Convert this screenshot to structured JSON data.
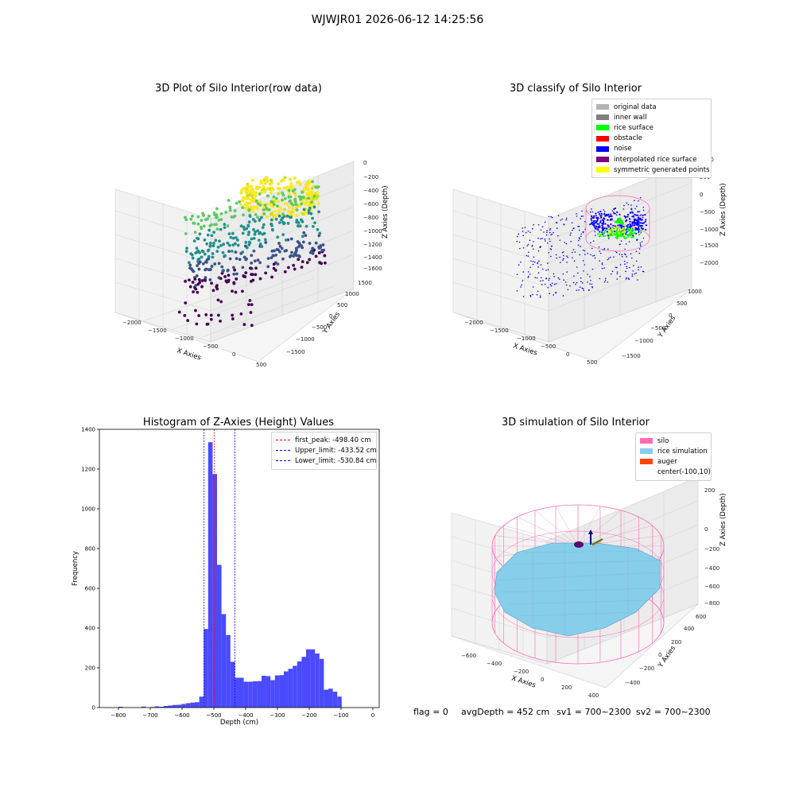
{
  "figure": {
    "suptitle": "WJWJR01 2026-06-12 14:25:56",
    "footer": {
      "flag": "flag = 0",
      "avg_depth": "avgDepth = 452 cm",
      "sv1": "sv1 = 700~2300",
      "sv2": "sv2 = 700~2300"
    }
  },
  "panel1": {
    "title": "3D Plot of Silo Interior(row data)",
    "xlabel": "X Axies",
    "ylabel": "Y Axies",
    "zlabel": "Z Axies (Depth)",
    "xticks": [
      "−2000",
      "−1500",
      "−1000",
      "−500",
      "0",
      "500"
    ],
    "yticks": [
      "1500",
      "1000",
      "500",
      "0",
      "−500",
      "−1000",
      "−1500"
    ],
    "zticks": [
      "0",
      "−200",
      "−400",
      "−600",
      "−800",
      "−1000",
      "−1200",
      "−1400",
      "−1600"
    ],
    "colormap": [
      "#440154",
      "#3b528b",
      "#21918c",
      "#5ec962",
      "#fde725"
    ]
  },
  "panel2": {
    "title": "3D classify of Silo Interior",
    "xlabel": "X Axies",
    "ylabel": "Y Axies",
    "zlabel": "Z Axies (Depth)",
    "xticks": [
      "−2000",
      "−1500",
      "−1000",
      "−500",
      "0",
      "500"
    ],
    "yticks": [
      "1000",
      "500",
      "0",
      "−500",
      "−1000",
      "−1500"
    ],
    "zticks": [
      "1000",
      "500",
      "0",
      "−500",
      "−1000",
      "−1500",
      "−2000"
    ],
    "legend": [
      {
        "label": "original data",
        "color": "#b3b3b3"
      },
      {
        "label": "inner wall",
        "color": "#808080"
      },
      {
        "label": "rice surface",
        "color": "#00ff00"
      },
      {
        "label": "obstacle",
        "color": "#ff0000"
      },
      {
        "label": "noise",
        "color": "#0000ff"
      },
      {
        "label": "interpolated rice surface",
        "color": "#800080"
      },
      {
        "label": "symmetric generated points",
        "color": "#ffff00"
      }
    ]
  },
  "panel3": {
    "title": "3D simulation of Silo Interior",
    "xlabel": "X Axies",
    "ylabel": "Y Axies",
    "zlabel": "Z Axies (Depth)",
    "xticks": [
      "−600",
      "−400",
      "−200",
      "0",
      "200",
      "400"
    ],
    "yticks": [
      "600",
      "400",
      "200",
      "0",
      "−200",
      "−400"
    ],
    "zticks": [
      "200",
      "0",
      "−200",
      "−400",
      "−600",
      "−800"
    ],
    "legend": [
      {
        "label": "silo",
        "color": "#ff69b4"
      },
      {
        "label": "rice simulation",
        "color": "#87ceeb"
      },
      {
        "label": "auger",
        "color": "#ff4500"
      },
      {
        "label": "center(-100,10)",
        "color": "#ffffff"
      }
    ]
  },
  "chart_data": {
    "type": "bar",
    "title": "Histogram of Z-Axies (Height) Values",
    "xlabel": "Depth (cm)",
    "ylabel": "Frequency",
    "xlim": [
      -860,
      20
    ],
    "ylim": [
      0,
      1400
    ],
    "xticks": [
      -800,
      -700,
      -600,
      -500,
      -400,
      -300,
      -200,
      -100,
      0
    ],
    "yticks": [
      0,
      200,
      400,
      600,
      800,
      1000,
      1200,
      1400
    ],
    "bar_color": "#4a4aff",
    "bins": [
      {
        "x0": -800,
        "x1": -786,
        "value": 4
      },
      {
        "x0": -728,
        "x1": -714,
        "value": 5
      },
      {
        "x0": -700,
        "x1": -686,
        "value": 3
      },
      {
        "x0": -686,
        "x1": -672,
        "value": 6
      },
      {
        "x0": -672,
        "x1": -658,
        "value": 4
      },
      {
        "x0": -658,
        "x1": -644,
        "value": 8
      },
      {
        "x0": -644,
        "x1": -630,
        "value": 10
      },
      {
        "x0": -630,
        "x1": -616,
        "value": 13
      },
      {
        "x0": -616,
        "x1": -602,
        "value": 14
      },
      {
        "x0": -602,
        "x1": -588,
        "value": 18
      },
      {
        "x0": -588,
        "x1": -574,
        "value": 22
      },
      {
        "x0": -574,
        "x1": -560,
        "value": 25
      },
      {
        "x0": -560,
        "x1": -546,
        "value": 27
      },
      {
        "x0": -546,
        "x1": -532,
        "value": 55
      },
      {
        "x0": -532,
        "x1": -518,
        "value": 395
      },
      {
        "x0": -518,
        "x1": -504,
        "value": 1335
      },
      {
        "x0": -504,
        "x1": -490,
        "value": 1175
      },
      {
        "x0": -490,
        "x1": -476,
        "value": 718
      },
      {
        "x0": -476,
        "x1": -462,
        "value": 470
      },
      {
        "x0": -462,
        "x1": -448,
        "value": 365
      },
      {
        "x0": -448,
        "x1": -434,
        "value": 230
      },
      {
        "x0": -434,
        "x1": -420,
        "value": 150
      },
      {
        "x0": -420,
        "x1": -406,
        "value": 150
      },
      {
        "x0": -406,
        "x1": -392,
        "value": 130
      },
      {
        "x0": -392,
        "x1": -378,
        "value": 130
      },
      {
        "x0": -378,
        "x1": -364,
        "value": 132
      },
      {
        "x0": -364,
        "x1": -350,
        "value": 133
      },
      {
        "x0": -350,
        "x1": -336,
        "value": 160
      },
      {
        "x0": -336,
        "x1": -322,
        "value": 158
      },
      {
        "x0": -322,
        "x1": -308,
        "value": 138
      },
      {
        "x0": -308,
        "x1": -294,
        "value": 162
      },
      {
        "x0": -294,
        "x1": -280,
        "value": 163
      },
      {
        "x0": -280,
        "x1": -266,
        "value": 182
      },
      {
        "x0": -266,
        "x1": -252,
        "value": 195
      },
      {
        "x0": -252,
        "x1": -238,
        "value": 210
      },
      {
        "x0": -238,
        "x1": -224,
        "value": 232
      },
      {
        "x0": -224,
        "x1": -210,
        "value": 255
      },
      {
        "x0": -210,
        "x1": -196,
        "value": 293
      },
      {
        "x0": -196,
        "x1": -182,
        "value": 293
      },
      {
        "x0": -182,
        "x1": -168,
        "value": 272
      },
      {
        "x0": -168,
        "x1": -154,
        "value": 245
      },
      {
        "x0": -154,
        "x1": -140,
        "value": 90
      },
      {
        "x0": -140,
        "x1": -126,
        "value": 95
      },
      {
        "x0": -126,
        "x1": -112,
        "value": 80
      },
      {
        "x0": -112,
        "x1": -98,
        "value": 55
      }
    ],
    "vlines": [
      {
        "name": "first_peak: -498.40 cm",
        "x": -498.4,
        "color": "#ff0000"
      },
      {
        "name": "Upper_limit: -433.52 cm",
        "x": -433.52,
        "color": "#0000ff"
      },
      {
        "name": "Lower_limit: -530.84 cm",
        "x": -530.84,
        "color": "#0000ff"
      }
    ],
    "legend_position": "upper right"
  }
}
